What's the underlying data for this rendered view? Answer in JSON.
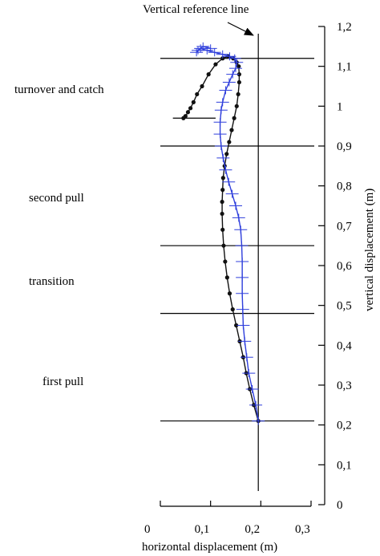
{
  "chart_data": {
    "type": "line",
    "xlabel": "horizontal displacement (m)",
    "ylabel": "vertical displacement (m)",
    "xlim": [
      0,
      0.3
    ],
    "ylim": [
      0,
      1.2
    ],
    "x_ticks": [
      "0",
      "0,1",
      "0,2",
      "0,3"
    ],
    "y_ticks": [
      "0",
      "0,1",
      "0,2",
      "0,3",
      "0,4",
      "0,5",
      "0,6",
      "0,7",
      "0,8",
      "0,9",
      "1",
      "1,1",
      "1,2"
    ],
    "x_tick_values": [
      0,
      0.1,
      0.2,
      0.3
    ],
    "y_tick_values": [
      0,
      0.1,
      0.2,
      0.3,
      0.4,
      0.5,
      0.6,
      0.7,
      0.8,
      0.9,
      1.0,
      1.1,
      1.2
    ],
    "vertical_reference_x": 0.195,
    "phase_boundaries_y": [
      0.21,
      0.48,
      0.65,
      0.9,
      1.12
    ],
    "phases": [
      "first pull",
      "transition",
      "second pull",
      "turnover and catch"
    ],
    "annotation": "Vertical reference line",
    "catch_line": {
      "x": [
        0.025,
        0.11
      ],
      "y": 0.97
    },
    "series": [
      {
        "marker": "dot",
        "color": "#111111",
        "x": [
          0.195,
          0.186,
          0.178,
          0.171,
          0.165,
          0.158,
          0.151,
          0.144,
          0.138,
          0.133,
          0.129,
          0.126,
          0.124,
          0.123,
          0.123,
          0.124,
          0.125,
          0.128,
          0.132,
          0.137,
          0.142,
          0.147,
          0.152,
          0.155,
          0.157,
          0.157,
          0.156,
          0.152,
          0.145,
          0.135,
          0.124,
          0.11,
          0.096,
          0.083,
          0.073,
          0.066,
          0.06,
          0.055,
          0.05,
          0.046
        ],
        "y": [
          0.21,
          0.25,
          0.29,
          0.33,
          0.37,
          0.41,
          0.45,
          0.49,
          0.53,
          0.57,
          0.61,
          0.65,
          0.69,
          0.73,
          0.76,
          0.79,
          0.82,
          0.85,
          0.88,
          0.91,
          0.94,
          0.97,
          1.0,
          1.03,
          1.06,
          1.08,
          1.1,
          1.11,
          1.12,
          1.125,
          1.12,
          1.105,
          1.08,
          1.05,
          1.03,
          1.01,
          0.995,
          0.985,
          0.975,
          0.97
        ]
      },
      {
        "marker": "cross",
        "color": "#2f3fdc",
        "x": [
          0.195,
          0.19,
          0.183,
          0.176,
          0.172,
          0.168,
          0.165,
          0.164,
          0.163,
          0.163,
          0.163,
          0.162,
          0.16,
          0.156,
          0.15,
          0.143,
          0.136,
          0.13,
          0.125,
          0.121,
          0.119,
          0.119,
          0.121,
          0.124,
          0.13,
          0.137,
          0.144,
          0.15,
          0.152,
          0.148,
          0.138,
          0.124,
          0.108,
          0.093,
          0.08,
          0.072,
          0.075,
          0.085,
          0.1
        ],
        "y": [
          0.21,
          0.25,
          0.29,
          0.33,
          0.37,
          0.41,
          0.45,
          0.49,
          0.53,
          0.57,
          0.61,
          0.65,
          0.69,
          0.72,
          0.75,
          0.78,
          0.81,
          0.84,
          0.87,
          0.9,
          0.93,
          0.96,
          0.99,
          1.01,
          1.04,
          1.06,
          1.08,
          1.095,
          1.11,
          1.12,
          1.125,
          1.13,
          1.135,
          1.14,
          1.145,
          1.135,
          1.14,
          1.15,
          1.145
        ]
      }
    ]
  }
}
